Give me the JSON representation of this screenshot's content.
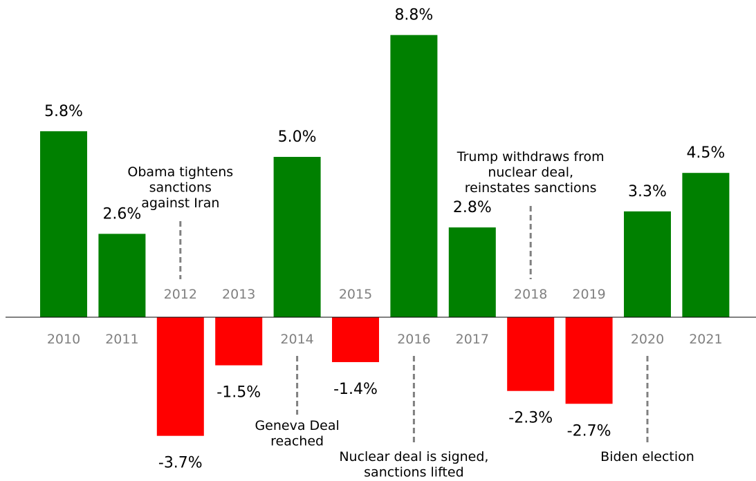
{
  "chart_data": {
    "type": "bar",
    "categories": [
      "2010",
      "2011",
      "2012",
      "2013",
      "2014",
      "2015",
      "2016",
      "2017",
      "2018",
      "2019",
      "2020",
      "2021"
    ],
    "values": [
      5.8,
      2.6,
      -3.7,
      -1.5,
      5.0,
      -1.4,
      8.8,
      2.8,
      -2.3,
      -2.7,
      3.3,
      4.5
    ],
    "value_labels": [
      "5.8%",
      "2.6%",
      "-3.7%",
      "-1.5%",
      "5.0%",
      "-1.4%",
      "8.8%",
      "2.8%",
      "-2.3%",
      "-2.7%",
      "3.3%",
      "4.5%"
    ],
    "title": "",
    "xlabel": "",
    "ylabel": "",
    "ylim": [
      -4.5,
      9.9
    ],
    "grid": false,
    "legend": "none",
    "colors": {
      "positive": "#008000",
      "negative": "#ff0000",
      "year_label": "#808080",
      "annotation_line": "#808080",
      "axis": "#000000"
    },
    "annotations": [
      {
        "category": "2012",
        "side": "above",
        "lines": [
          "Obama tightens",
          "sanctions",
          "against Iran"
        ]
      },
      {
        "category": "2014",
        "side": "below",
        "lines": [
          "Geneva Deal",
          "reached"
        ]
      },
      {
        "category": "2016",
        "side": "below",
        "lines": [
          "Nuclear deal is signed,",
          "sanctions lifted"
        ]
      },
      {
        "category": "2018",
        "side": "above",
        "lines": [
          "Trump withdraws from",
          "nuclear deal,",
          "reinstates sanctions"
        ]
      },
      {
        "category": "2020",
        "side": "below",
        "lines": [
          "Biden election"
        ]
      }
    ]
  }
}
